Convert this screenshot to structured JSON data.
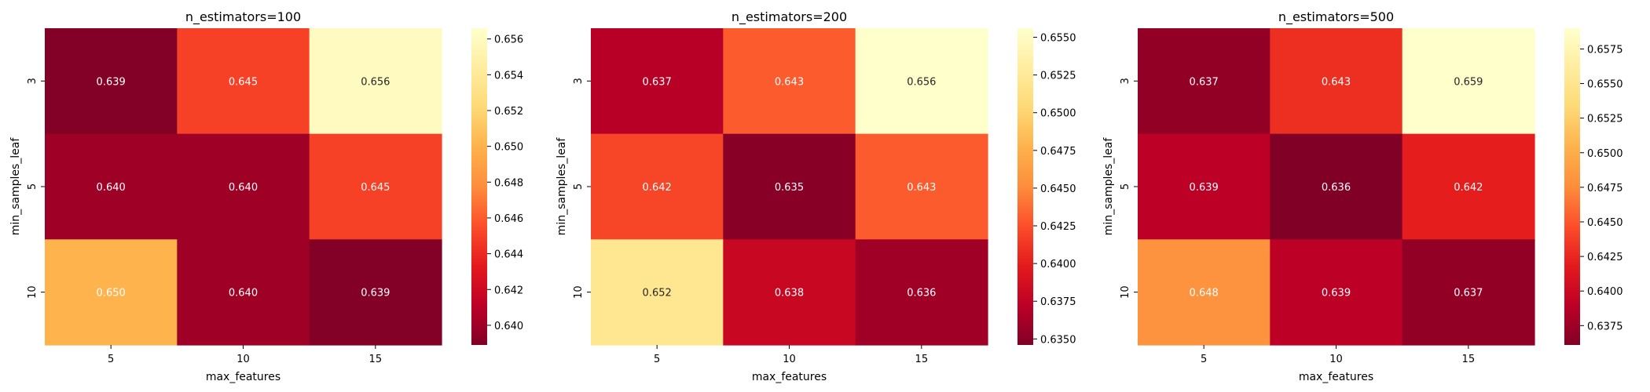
{
  "chart_data": [
    {
      "type": "heatmap",
      "title": "n_estimators=100",
      "xlabel": "max_features",
      "ylabel": "min_samples_leaf",
      "x_categories": [
        "5",
        "10",
        "15"
      ],
      "y_categories": [
        "3",
        "5",
        "10"
      ],
      "values": [
        [
          0.639,
          0.645,
          0.656
        ],
        [
          0.64,
          0.64,
          0.645
        ],
        [
          0.65,
          0.64,
          0.639
        ]
      ],
      "cell_labels": [
        [
          "0.639",
          "0.645",
          "0.656"
        ],
        [
          "0.640",
          "0.640",
          "0.645"
        ],
        [
          "0.650",
          "0.640",
          "0.639"
        ]
      ],
      "colormap": "YlOrRd_r",
      "vmin": 0.6389,
      "vmax": 0.6566,
      "colorbar_ticks": [
        "0.640",
        "0.642",
        "0.644",
        "0.646",
        "0.648",
        "0.650",
        "0.652",
        "0.654",
        "0.656"
      ]
    },
    {
      "type": "heatmap",
      "title": "n_estimators=200",
      "xlabel": "max_features",
      "ylabel": "min_samples_leaf",
      "x_categories": [
        "5",
        "10",
        "15"
      ],
      "y_categories": [
        "3",
        "5",
        "10"
      ],
      "values": [
        [
          0.637,
          0.643,
          0.656
        ],
        [
          0.642,
          0.635,
          0.643
        ],
        [
          0.652,
          0.638,
          0.636
        ]
      ],
      "cell_labels": [
        [
          "0.637",
          "0.643",
          "0.656"
        ],
        [
          "0.642",
          "0.635",
          "0.643"
        ],
        [
          "0.652",
          "0.638",
          "0.636"
        ]
      ],
      "colormap": "YlOrRd_r",
      "vmin": 0.6346,
      "vmax": 0.6556,
      "colorbar_ticks": [
        "0.6350",
        "0.6375",
        "0.6400",
        "0.6425",
        "0.6450",
        "0.6475",
        "0.6500",
        "0.6525",
        "0.6550"
      ]
    },
    {
      "type": "heatmap",
      "title": "n_estimators=500",
      "xlabel": "max_features",
      "ylabel": "min_samples_leaf",
      "x_categories": [
        "5",
        "10",
        "15"
      ],
      "y_categories": [
        "3",
        "5",
        "10"
      ],
      "values": [
        [
          0.637,
          0.643,
          0.659
        ],
        [
          0.639,
          0.636,
          0.642
        ],
        [
          0.648,
          0.639,
          0.637
        ]
      ],
      "cell_labels": [
        [
          "0.637",
          "0.643",
          "0.659"
        ],
        [
          "0.639",
          "0.636",
          "0.642"
        ],
        [
          "0.648",
          "0.639",
          "0.637"
        ]
      ],
      "colormap": "YlOrRd_r",
      "vmin": 0.6361,
      "vmax": 0.659,
      "colorbar_ticks": [
        "0.6375",
        "0.6400",
        "0.6425",
        "0.6450",
        "0.6475",
        "0.6500",
        "0.6525",
        "0.6550",
        "0.6575"
      ]
    }
  ]
}
